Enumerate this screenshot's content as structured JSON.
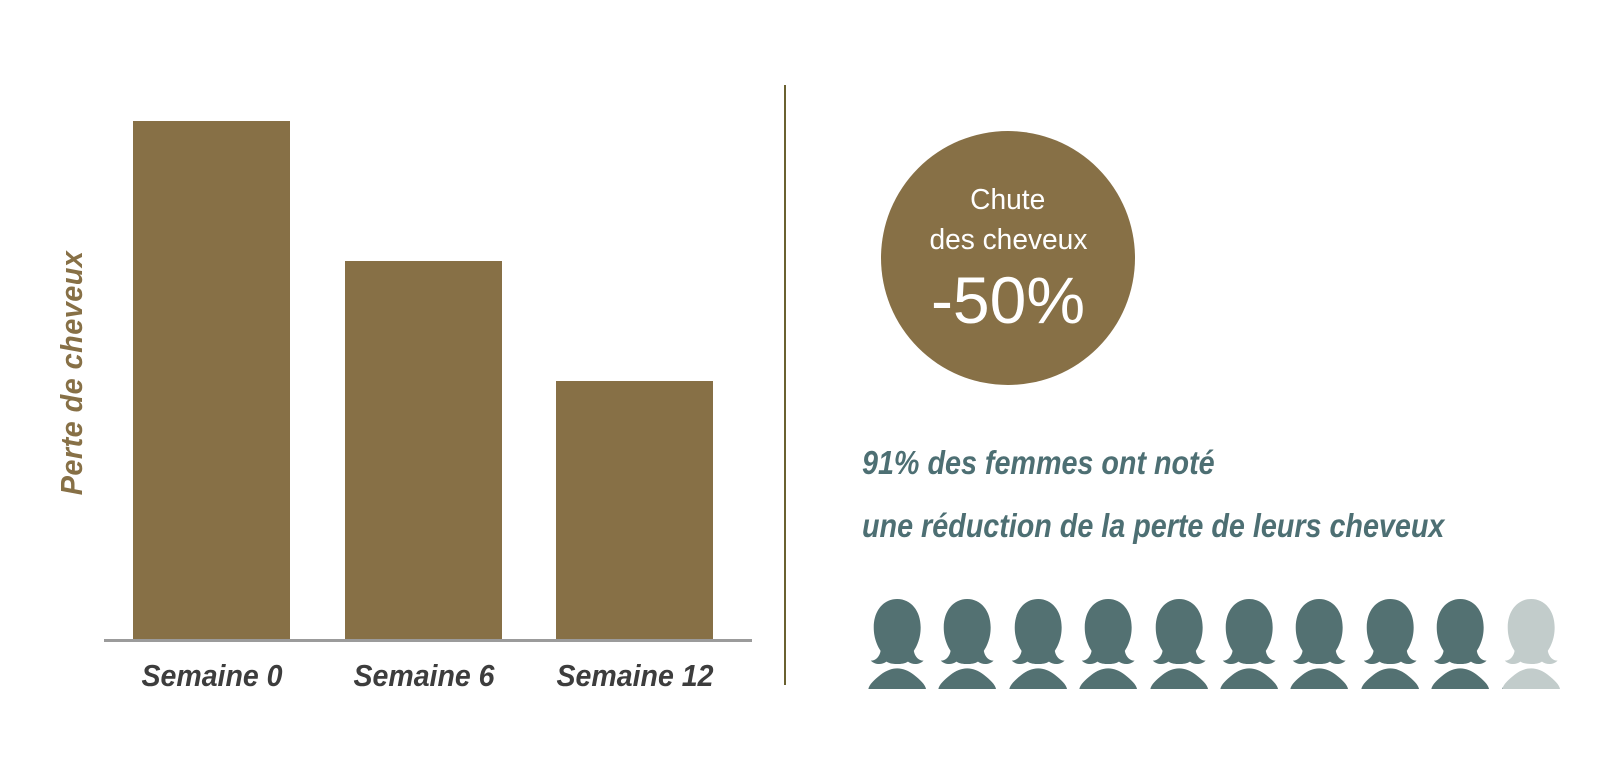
{
  "page": {
    "background": "#ffffff",
    "divider_color": "#6a6130"
  },
  "chart_data": {
    "type": "bar",
    "title": "",
    "categories": [
      "Semaine 0",
      "Semaine 6",
      "Semaine 12"
    ],
    "values": [
      100,
      73,
      50
    ],
    "ylabel": "Perte de cheveux",
    "xlabel": "",
    "ylim": [
      0,
      100
    ],
    "grid": false,
    "legend": "none",
    "bar_color": "#877046",
    "axis_color": "#9b9b9b",
    "xtick_color": "#3d3d3d",
    "ylabel_color": "#877046"
  },
  "badge": {
    "line1": "Chute",
    "line2": "des cheveux",
    "value": "-50%",
    "bg_color": "#877046",
    "text_color": "#ffffff"
  },
  "stat": {
    "percent": 91,
    "line1": "91% des femmes ont noté",
    "line2": "une réduction de la perte de leurs cheveux",
    "color": "#4d6f73"
  },
  "audience": {
    "total": 10,
    "percent_highlighted": 91,
    "dark_color": "#537172",
    "light_color": "#c2cccb"
  }
}
